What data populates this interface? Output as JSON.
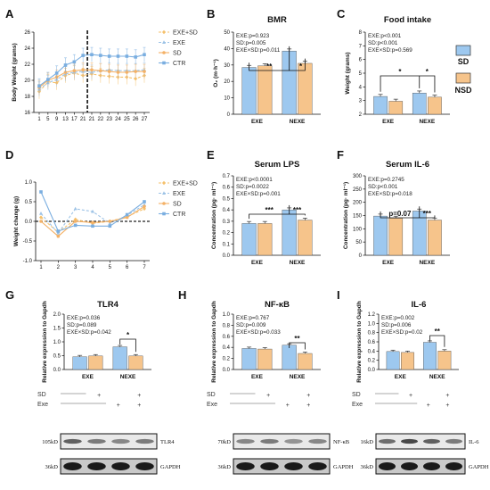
{
  "figure": {
    "colors": {
      "EXE+SD": "#f5c16c",
      "EXE": "#9dc3e6",
      "SD": "#f4b166",
      "CTR": "#7aaee0",
      "bar_blue": "#9dc8ef",
      "bar_orange": "#f6c48b"
    },
    "legend_right": {
      "items": [
        "SD",
        "NSD"
      ]
    },
    "treatment_rows": {
      "row_labels": [
        "SD",
        "Exe"
      ],
      "signs": [
        "+",
        "+",
        "+",
        "+"
      ]
    }
  },
  "chart_data": [
    {
      "id": "A",
      "type": "line",
      "ylabel": "Body Weight (grams)",
      "x": [
        "1",
        "5",
        "9",
        "13",
        "17",
        "21",
        "21",
        "22",
        "23",
        "24",
        "25",
        "26",
        "27"
      ],
      "yticks": [
        "16",
        "18",
        "20",
        "22",
        "24",
        "26"
      ],
      "ylim": [
        16,
        26
      ],
      "series": [
        {
          "name": "EXE+SD",
          "values": [
            18.6,
            19.8,
            19.7,
            20.6,
            20.9,
            20.6,
            20.8,
            20.6,
            20.5,
            20.4,
            20.4,
            20.2,
            20.6
          ]
        },
        {
          "name": "EXE",
          "values": [
            18.9,
            19.7,
            20.1,
            20.8,
            21.0,
            21.1,
            21.0,
            21.2,
            21.3,
            21.2,
            21.2,
            21.2,
            21.3
          ]
        },
        {
          "name": "SD",
          "values": [
            19.1,
            20.0,
            20.4,
            21.0,
            21.2,
            21.3,
            21.3,
            21.2,
            21.1,
            21.0,
            21.0,
            21.1,
            21.1
          ]
        },
        {
          "name": "CTR",
          "values": [
            19.3,
            20.1,
            20.9,
            21.9,
            22.3,
            23.1,
            23.2,
            23.1,
            23.0,
            23.0,
            23.0,
            22.9,
            23.2
          ]
        }
      ]
    },
    {
      "id": "B",
      "type": "bar",
      "title": "BMR",
      "ylabel": "O₂ (m·h⁻¹)",
      "categories": [
        "EXE",
        "NEXE"
      ],
      "yticks": [
        "0",
        "10",
        "20",
        "30",
        "40",
        "50"
      ],
      "ylim": [
        0,
        50
      ],
      "stats": [
        "EXE:p=0.923",
        "SD:p=0.005",
        "EXE×SD:p=0.011"
      ],
      "series": [
        {
          "name": "SD",
          "values": [
            28.5,
            38.5
          ]
        },
        {
          "name": "NSD",
          "values": [
            29.5,
            31.0
          ]
        }
      ],
      "sig": [
        "**",
        "*"
      ]
    },
    {
      "id": "C",
      "type": "bar",
      "title": "Food intake",
      "ylabel": "Weight (grams)",
      "categories": [
        "EXE",
        "NEXE"
      ],
      "yticks": [
        "2",
        "3",
        "4",
        "5",
        "6",
        "7",
        "8"
      ],
      "ylim": [
        2,
        8
      ],
      "stats": [
        "EXE:p<0.001",
        "SD:p<0.001",
        "EXE×SD:p=0.569"
      ],
      "series": [
        {
          "name": "SD",
          "values": [
            3.3,
            3.55
          ]
        },
        {
          "name": "NSD",
          "values": [
            2.95,
            3.25
          ]
        }
      ],
      "sig": [
        "*",
        "*"
      ]
    },
    {
      "id": "D",
      "type": "line",
      "ylabel": "Weight change (g)",
      "x": [
        "1",
        "2",
        "3",
        "4",
        "5",
        "6",
        "7"
      ],
      "yticks": [
        "-1.0",
        "-0.5",
        "0.0",
        "0.5",
        "1.0"
      ],
      "ylim": [
        -1,
        1
      ],
      "series": [
        {
          "name": "EXE+SD",
          "values": [
            0.1,
            -0.28,
            0.05,
            -0.05,
            0.0,
            0.12,
            0.32
          ]
        },
        {
          "name": "EXE",
          "values": [
            0.2,
            -0.3,
            0.32,
            0.25,
            -0.05,
            0.15,
            0.42
          ]
        },
        {
          "name": "SD",
          "values": [
            0.0,
            -0.38,
            0.0,
            -0.03,
            0.0,
            0.1,
            0.38
          ]
        },
        {
          "name": "CTR",
          "values": [
            0.75,
            -0.25,
            -0.1,
            -0.12,
            -0.12,
            0.17,
            0.5
          ]
        }
      ]
    },
    {
      "id": "E",
      "type": "bar",
      "title": "Serum LPS",
      "ylabel": "Concentration (pg· ml⁻¹)",
      "categories": [
        "EXE",
        "NEXE"
      ],
      "yticks": [
        "0.0",
        "0.1",
        "0.2",
        "0.3",
        "0.4",
        "0.5",
        "0.6",
        "0.7"
      ],
      "ylim": [
        0,
        0.7
      ],
      "stats": [
        "EXE:p<0.0001",
        "SD:p=0.0022",
        "EXE×SD:p=0.001"
      ],
      "series": [
        {
          "name": "SD",
          "values": [
            0.28,
            0.4
          ]
        },
        {
          "name": "NSD",
          "values": [
            0.28,
            0.31
          ]
        }
      ],
      "sig": [
        "***",
        "***"
      ]
    },
    {
      "id": "F",
      "type": "bar",
      "title": "Serum IL-6",
      "ylabel": "Concentration (pg· ml⁻¹)",
      "categories": [
        "EXE",
        "NEXE"
      ],
      "yticks": [
        "0",
        "50",
        "100",
        "150",
        "200",
        "250",
        "300"
      ],
      "ylim": [
        0,
        300
      ],
      "stats": [
        "EXE:p=0.2745",
        "SD:p<0.001",
        "EXE×SD:p=0.018"
      ],
      "series": [
        {
          "name": "SD",
          "values": [
            148,
            167
          ]
        },
        {
          "name": "NSD",
          "values": [
            140,
            133
          ]
        }
      ],
      "sig": [
        "p=0.07",
        "***"
      ]
    },
    {
      "id": "G",
      "type": "bar",
      "title": "TLR4",
      "ylabel": "Relative expression to Gapdh",
      "categories": [
        "EXE",
        "NEXE"
      ],
      "yticks": [
        "0.0",
        "0.5",
        "1.0",
        "1.5",
        "2.0"
      ],
      "ylim": [
        0,
        2
      ],
      "stats": [
        "EXE:p=0.036",
        "SD:p=0.089",
        "EXE×SD:p=0.042"
      ],
      "series": [
        {
          "name": "SD",
          "values": [
            0.46,
            0.82
          ]
        },
        {
          "name": "NSD",
          "values": [
            0.49,
            0.49
          ]
        }
      ],
      "sig": [
        "",
        "*"
      ],
      "blot": {
        "bands": [
          "105kD",
          "36kD"
        ],
        "names": [
          "TLR4",
          "GAPDH"
        ]
      }
    },
    {
      "id": "H",
      "type": "bar",
      "title": "NF-κB",
      "ylabel": "Relative expression to Gapdh",
      "categories": [
        "EXE",
        "NEXE"
      ],
      "yticks": [
        "0.0",
        "0.2",
        "0.4",
        "0.6",
        "0.8",
        "1.0"
      ],
      "ylim": [
        0,
        1
      ],
      "stats": [
        "EXE:p=0.767",
        "SD:p=0.009",
        "EXE×SD:p=0.033"
      ],
      "series": [
        {
          "name": "SD",
          "values": [
            0.38,
            0.44
          ]
        },
        {
          "name": "NSD",
          "values": [
            0.37,
            0.29
          ]
        }
      ],
      "sig": [
        "",
        "**"
      ],
      "blot": {
        "bands": [
          "70kD",
          "36kD"
        ],
        "names": [
          "NF-κB",
          "GAPDH"
        ]
      }
    },
    {
      "id": "I",
      "type": "bar",
      "title": "IL-6",
      "ylabel": "Relative expression to Gapdh",
      "categories": [
        "EXE",
        "NEXE"
      ],
      "yticks": [
        "0.0",
        "0.2",
        "0.4",
        "0.6",
        "0.8",
        "1.0",
        "1.2"
      ],
      "ylim": [
        0,
        1.2
      ],
      "stats": [
        "EXE:p=0.002",
        "SD:p=0.006",
        "EXE×SD:p=0.02"
      ],
      "series": [
        {
          "name": "SD",
          "values": [
            0.39,
            0.59
          ]
        },
        {
          "name": "NSD",
          "values": [
            0.37,
            0.4
          ]
        }
      ],
      "sig": [
        "",
        "**"
      ],
      "blot": {
        "bands": [
          "16kD",
          "36kD"
        ],
        "names": [
          "IL-6",
          "GAPDH"
        ]
      }
    }
  ]
}
